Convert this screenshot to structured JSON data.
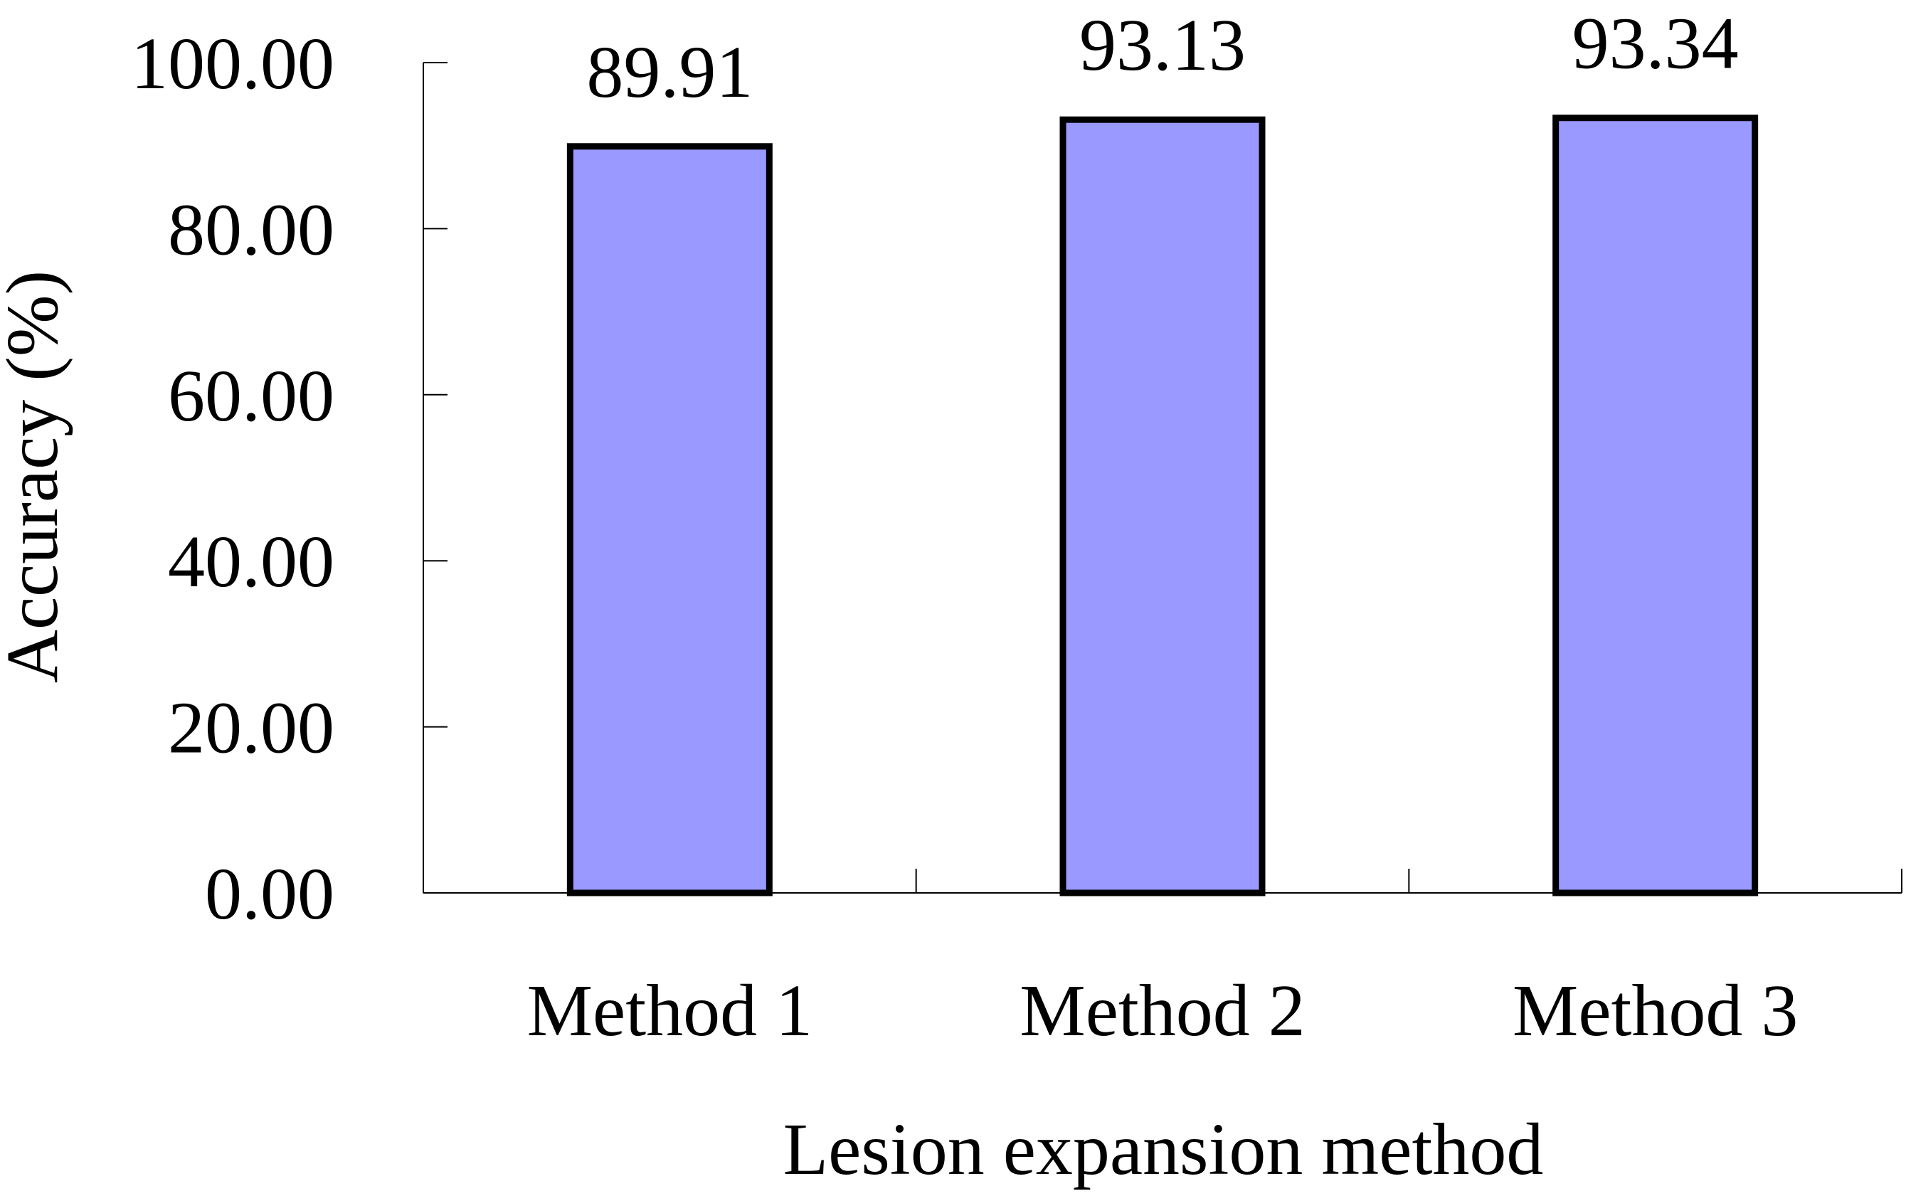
{
  "chart_data": {
    "type": "bar",
    "categories": [
      "Method 1",
      "Method 2",
      "Method 3"
    ],
    "series": [
      {
        "values": [
          89.91,
          93.13,
          93.34
        ]
      }
    ],
    "data_labels": [
      "89.91",
      "93.13",
      "93.34"
    ],
    "y_tick_labels": [
      "0.00",
      "20.00",
      "40.00",
      "60.00",
      "80.00",
      "100.00"
    ],
    "y_ticks": [
      0,
      20,
      40,
      60,
      80,
      100
    ],
    "xlabel": "Lesion expansion method",
    "ylabel": "Accuracy (%)",
    "ylim": [
      0,
      100
    ],
    "grid": false,
    "legend": "none",
    "colors": {
      "bar_fill": "#9999ff",
      "bar_stroke": "#000000",
      "axis": "#000000",
      "text": "#000000"
    }
  }
}
